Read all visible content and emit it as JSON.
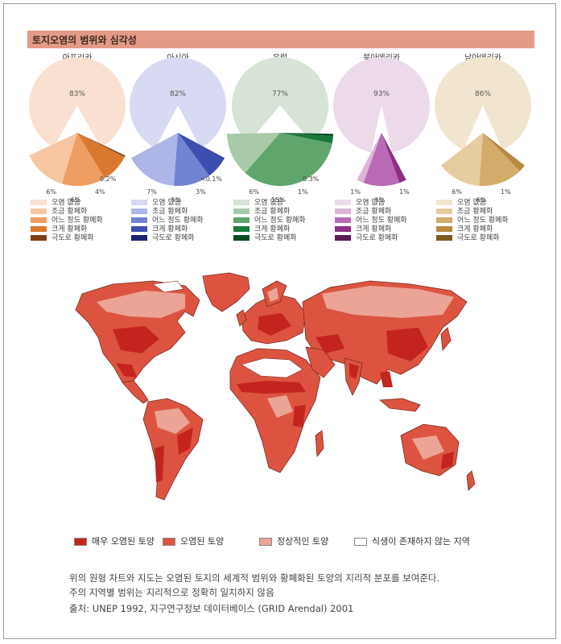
{
  "title": "토지오염의 범위와 심각성",
  "chart_data": [
    {
      "type": "pie",
      "title": "아프리카",
      "categories": [
        "오염 없음",
        "조금 황폐화",
        "어느 정도 황폐화",
        "크게 황폐화",
        "극도로 황폐화"
      ],
      "values": [
        83,
        6,
        6,
        4,
        0.2
      ],
      "labels": [
        "83%",
        "6%",
        "6%",
        "4%",
        "0.2%"
      ],
      "colors": [
        "#f9e0d0",
        "#f6c6a2",
        "#ee9e62",
        "#d9792f",
        "#7b3f12"
      ]
    },
    {
      "type": "pie",
      "title": "아시아",
      "categories": [
        "오염 없음",
        "조금 황폐화",
        "어느 정도 황폐화",
        "크게 황폐화",
        "극도로 황폐화"
      ],
      "values": [
        82,
        7,
        5,
        3,
        0.1
      ],
      "labels": [
        "82%",
        "7%",
        "5%",
        "3%",
        "<0.1%"
      ],
      "colors": [
        "#d8d9f2",
        "#aeb5e8",
        "#7283d2",
        "#3c4fb0",
        "#1b2470"
      ]
    },
    {
      "type": "pie",
      "title": "유럽",
      "categories": [
        "오염 없음",
        "조금 황폐화",
        "어느 정도 황폐화",
        "크게 황폐화",
        "극도로 황폐화"
      ],
      "values": [
        77,
        6,
        15,
        1,
        0.3
      ],
      "labels": [
        "77%",
        "6%",
        "15%",
        "1%",
        "0.3%"
      ],
      "colors": [
        "#d6e3d6",
        "#a9caa9",
        "#5fa56c",
        "#177a3a",
        "#0a4a22"
      ]
    },
    {
      "type": "pie",
      "title": "북아메리카",
      "categories": [
        "오염 없음",
        "조금 황폐화",
        "어느 정도 황폐화",
        "크게 황폐화",
        "극도로 황폐화"
      ],
      "values": [
        93,
        1,
        5,
        1,
        0
      ],
      "labels": [
        "93%",
        "1%",
        "5%",
        "1%",
        ""
      ],
      "colors": [
        "#ecdaea",
        "#dcb5d8",
        "#b96ab4",
        "#8e2f86",
        "#5a1b57"
      ]
    },
    {
      "type": "pie",
      "title": "남아메리카",
      "categories": [
        "오염 없음",
        "조금 황폐화",
        "어느 정도 황폐화",
        "크게 황폐화",
        "극도로 황폐화"
      ],
      "values": [
        86,
        6,
        6,
        1,
        0
      ],
      "labels": [
        "86%",
        "6%",
        "6%",
        "1%",
        ""
      ],
      "colors": [
        "#f1e5cf",
        "#e6cd9f",
        "#d3ab6b",
        "#b78b3f",
        "#7c5a22"
      ]
    }
  ],
  "map_colors": {
    "severe": "#c4241e",
    "polluted": "#dc5440",
    "normal": "#eba495",
    "none": "#ffffff",
    "coast": "#7a2a20"
  },
  "map_legend": [
    {
      "label": "매우 오염된 토양",
      "color": "#c4241e"
    },
    {
      "label": "오염된 토양",
      "color": "#dc5440"
    },
    {
      "label": "정상적인 토양",
      "color": "#eba495"
    },
    {
      "label": "식생이 존재하지 않는 지역",
      "color": "#ffffff"
    }
  ],
  "caption": {
    "line1": "위의 원형 차트와 지도는 오염된 토지의 세계적 범위와 황폐화된 토양의 지리적 분포를 보여준다.",
    "line2": "주의 지역별 범위는 지리적으로 정확히 일치하지 않음",
    "line3": "출처: UNEP 1992, 지구연구정보 데이터베이스 (GRID Arendal) 2001"
  }
}
